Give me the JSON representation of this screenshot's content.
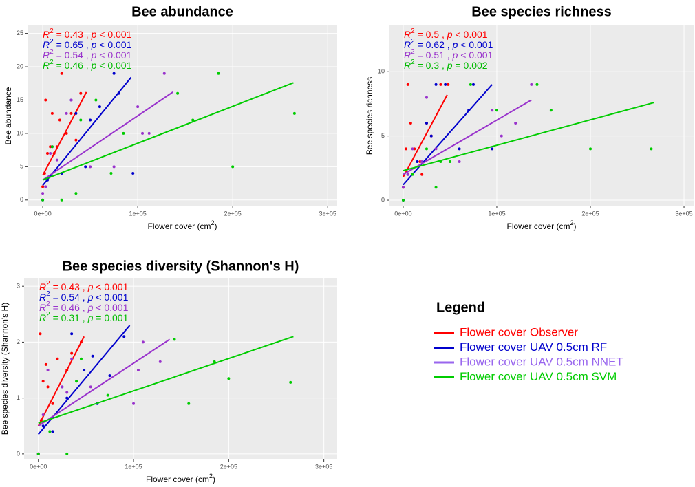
{
  "chart_data": [
    {
      "type": "scatter",
      "title": "Bee abundance",
      "x_label": "Flower cover (cm",
      "x_label_sup": "2",
      "x_label_end": ")",
      "y_label": "Bee abundance",
      "xlim": [
        -16000,
        310000
      ],
      "ylim": [
        -0.95,
        26.2
      ],
      "xticks": [
        {
          "value": 0,
          "label": "0e+00"
        },
        {
          "value": 100000,
          "label": "1e+05"
        },
        {
          "value": 200000,
          "label": "2e+05"
        },
        {
          "value": 300000,
          "label": "3e+05"
        }
      ],
      "yticks": [
        0,
        5,
        10,
        15,
        20,
        25
      ],
      "grid": true,
      "annotations": [
        {
          "r": "R",
          "sup": "2",
          "eq": " = 0.43 , ",
          "p": "p",
          "cond": " < 0.001",
          "color": "#ff0000"
        },
        {
          "r": "R",
          "sup": "2",
          "eq": " = 0.65 , ",
          "p": "p",
          "cond": " < 0.001",
          "color": "#0000cc"
        },
        {
          "r": "R",
          "sup": "2",
          "eq": " = 0.54 , ",
          "p": "p",
          "cond": " < 0.001",
          "color": "#9933cc"
        },
        {
          "r": "R",
          "sup": "2",
          "eq": " = 0.46 , ",
          "p": "p",
          "cond": " < 0.001",
          "color": "#00bb00"
        }
      ],
      "series": [
        {
          "color": "#ff0000",
          "x": [
            0,
            2000,
            5000,
            8000,
            10000,
            15000,
            20000,
            25000,
            30000,
            35000,
            3000,
            12000,
            40000,
            18000
          ],
          "values": [
            2,
            4,
            7,
            8,
            13,
            8,
            19,
            10,
            13,
            9,
            15,
            7,
            16,
            12
          ],
          "fit": {
            "x": [
              0,
              46000
            ],
            "values": [
              3.7,
              16.2
            ]
          }
        },
        {
          "color": "#0000cc",
          "x": [
            0,
            5000,
            10000,
            20000,
            35000,
            50000,
            60000,
            75000,
            80000,
            95000,
            30000,
            45000
          ],
          "values": [
            0,
            3,
            8,
            4,
            13,
            12,
            14,
            19,
            16,
            4,
            15,
            5
          ],
          "fit": {
            "x": [
              0,
              93000
            ],
            "values": [
              2.2,
              18.4
            ]
          }
        },
        {
          "color": "#9933cc",
          "x": [
            0,
            3000,
            8000,
            15000,
            25000,
            50000,
            100000,
            105000,
            112000,
            128000,
            75000,
            30000
          ],
          "values": [
            1,
            2,
            7,
            6,
            13,
            5,
            14,
            10,
            10,
            19,
            5,
            15
          ],
          "fit": {
            "x": [
              0,
              137000
            ],
            "values": [
              3.0,
              16.2
            ]
          }
        },
        {
          "color": "#00cc00",
          "x": [
            0,
            10000,
            20000,
            35000,
            56000,
            72000,
            85000,
            142000,
            158000,
            185000,
            200000,
            265000,
            40000
          ],
          "values": [
            0,
            8,
            0,
            1,
            15,
            4,
            10,
            16,
            12,
            19,
            5,
            13,
            12
          ],
          "fit": {
            "x": [
              0,
              264000
            ],
            "values": [
              3.0,
              17.6
            ]
          }
        }
      ]
    },
    {
      "type": "scatter",
      "title": "Bee species richness",
      "x_label": "Flower cover (cm",
      "x_label_sup": "2",
      "x_label_end": ")",
      "y_label": "Bee species richness",
      "xlim": [
        -15400,
        311000
      ],
      "ylim": [
        -0.48,
        13.6
      ],
      "xticks": [
        {
          "value": 0,
          "label": "0e+00"
        },
        {
          "value": 100000,
          "label": "1e+05"
        },
        {
          "value": 200000,
          "label": "2e+05"
        },
        {
          "value": 300000,
          "label": "3e+05"
        }
      ],
      "yticks": [
        0,
        5,
        10
      ],
      "grid": true,
      "annotations": [
        {
          "r": "R",
          "sup": "2",
          "eq": " = 0.5 , ",
          "p": "p",
          "cond": " < 0.001",
          "color": "#ff0000"
        },
        {
          "r": "R",
          "sup": "2",
          "eq": " = 0.62 , ",
          "p": "p",
          "cond": " < 0.001",
          "color": "#0000cc"
        },
        {
          "r": "R",
          "sup": "2",
          "eq": " = 0.51 , ",
          "p": "p",
          "cond": " < 0.001",
          "color": "#9933cc"
        },
        {
          "r": "R",
          "sup": "2",
          "eq": " = 0.3 , ",
          "p": "p",
          "cond": " = 0.002",
          "color": "#00bb00"
        }
      ],
      "series": [
        {
          "color": "#ff0000",
          "x": [
            0,
            3000,
            5000,
            8000,
            12000,
            18000,
            25000,
            30000,
            40000,
            48000,
            20000
          ],
          "values": [
            1,
            4,
            9,
            6,
            4,
            3,
            6,
            5,
            9,
            9,
            2
          ],
          "fit": {
            "x": [
              0,
              47000
            ],
            "values": [
              1.8,
              8.2
            ]
          }
        },
        {
          "color": "#0000cc",
          "x": [
            0,
            5000,
            15000,
            25000,
            30000,
            45000,
            60000,
            70000,
            75000,
            95000,
            35000
          ],
          "values": [
            0,
            2,
            3,
            6,
            5,
            9,
            4,
            7,
            9,
            4,
            9
          ],
          "fit": {
            "x": [
              0,
              95000
            ],
            "values": [
              1.2,
              9.0
            ]
          }
        },
        {
          "color": "#9933cc",
          "x": [
            0,
            5000,
            10000,
            20000,
            35000,
            60000,
            95000,
            105000,
            120000,
            137000,
            25000
          ],
          "values": [
            1,
            2,
            4,
            3,
            4,
            3,
            7,
            5,
            6,
            9,
            8
          ],
          "fit": {
            "x": [
              0,
              137000
            ],
            "values": [
              2.0,
              7.8
            ]
          }
        },
        {
          "color": "#00cc00",
          "x": [
            0,
            10000,
            25000,
            35000,
            50000,
            72000,
            100000,
            143000,
            158000,
            200000,
            265000,
            40000
          ],
          "values": [
            0,
            2,
            4,
            1,
            3,
            9,
            7,
            9,
            7,
            4,
            4,
            3
          ],
          "fit": {
            "x": [
              0,
              268000
            ],
            "values": [
              2.3,
              7.6
            ]
          }
        }
      ]
    },
    {
      "type": "scatter",
      "title": "Bee species diversity (Shannon's H)",
      "x_label": "Flower cover (cm",
      "x_label_sup": "2",
      "x_label_end": ")",
      "y_label": "Bee species diversity (Shannon's H)",
      "xlim": [
        -15000,
        314000
      ],
      "ylim": [
        -0.1,
        3.15
      ],
      "xticks": [
        {
          "value": 0,
          "label": "0e+00"
        },
        {
          "value": 100000,
          "label": "1e+05"
        },
        {
          "value": 200000,
          "label": "2e+05"
        },
        {
          "value": 300000,
          "label": "3e+05"
        }
      ],
      "yticks": [
        0,
        1,
        2,
        3
      ],
      "grid": true,
      "annotations": [
        {
          "r": "R",
          "sup": "2",
          "eq": " = 0.43 , ",
          "p": "p",
          "cond": " < 0.001",
          "color": "#ff0000"
        },
        {
          "r": "R",
          "sup": "2",
          "eq": " = 0.54 , ",
          "p": "p",
          "cond": " < 0.001",
          "color": "#0000cc"
        },
        {
          "r": "R",
          "sup": "2",
          "eq": " = 0.46 , ",
          "p": "p",
          "cond": " < 0.001",
          "color": "#9933cc"
        },
        {
          "r": "R",
          "sup": "2",
          "eq": " = 0.31 , ",
          "p": "p",
          "cond": " = 0.001",
          "color": "#00bb00"
        }
      ],
      "series": [
        {
          "color": "#ff0000",
          "x": [
            0,
            2000,
            5000,
            8000,
            10000,
            15000,
            20000,
            30000,
            35000,
            45000,
            3000
          ],
          "values": [
            0,
            2.15,
            1.3,
            1.6,
            1.2,
            0.9,
            1.7,
            1.5,
            1.8,
            2.0,
            0.6
          ],
          "fit": {
            "x": [
              0,
              48000
            ],
            "values": [
              0.5,
              2.1
            ]
          }
        },
        {
          "color": "#0000cc",
          "x": [
            0,
            5000,
            15000,
            25000,
            35000,
            48000,
            57000,
            62000,
            75000,
            90000,
            30000
          ],
          "values": [
            0,
            0.5,
            0.4,
            1.2,
            2.15,
            1.5,
            1.75,
            0.9,
            1.4,
            2.1,
            1.0
          ],
          "fit": {
            "x": [
              0,
              96000
            ],
            "values": [
              0.35,
              2.3
            ]
          }
        },
        {
          "color": "#9933cc",
          "x": [
            0,
            5000,
            10000,
            25000,
            35000,
            55000,
            100000,
            105000,
            110000,
            128000,
            30000
          ],
          "values": [
            0,
            0.7,
            1.5,
            1.2,
            1.7,
            1.2,
            0.9,
            1.5,
            2.0,
            1.65,
            1.1
          ],
          "fit": {
            "x": [
              0,
              138000
            ],
            "values": [
              0.5,
              2.05
            ]
          }
        },
        {
          "color": "#00cc00",
          "x": [
            0,
            12000,
            30000,
            45000,
            73000,
            143000,
            158000,
            185000,
            200000,
            265000,
            40000
          ],
          "values": [
            0,
            0.4,
            0,
            1.7,
            1.05,
            2.05,
            0.9,
            1.65,
            1.35,
            1.28,
            1.3
          ],
          "fit": {
            "x": [
              0,
              268000
            ],
            "values": [
              0.55,
              2.1
            ]
          }
        }
      ]
    }
  ],
  "legend": {
    "title": "Legend",
    "entries": [
      {
        "name": "Flower cover Observer",
        "color": "#ff0000"
      },
      {
        "name": "Flower cover UAV 0.5cm RF",
        "color": "#0000cc"
      },
      {
        "name": "Flower cover UAV 0.5cm NNET",
        "color": "#9966ee"
      },
      {
        "name": "Flower cover UAV 0.5cm SVM",
        "color": "#00cc00"
      }
    ]
  }
}
